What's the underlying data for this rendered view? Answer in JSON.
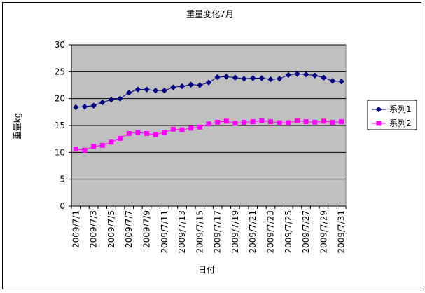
{
  "chart_data": {
    "type": "line",
    "title": "重量変化7月",
    "xlabel": "日付",
    "ylabel": "重量kg",
    "ylim": [
      0,
      30
    ],
    "yticks": [
      0,
      5,
      10,
      15,
      20,
      25,
      30
    ],
    "grid": "horizontal",
    "legend": "right",
    "plot_background": "#c0c0c0",
    "categories": [
      "2009/7/1",
      "2009/7/2",
      "2009/7/3",
      "2009/7/4",
      "2009/7/5",
      "2009/7/6",
      "2009/7/7",
      "2009/7/8",
      "2009/7/9",
      "2009/7/10",
      "2009/7/11",
      "2009/7/12",
      "2009/7/13",
      "2009/7/14",
      "2009/7/15",
      "2009/7/16",
      "2009/7/17",
      "2009/7/18",
      "2009/7/19",
      "2009/7/20",
      "2009/7/21",
      "2009/7/22",
      "2009/7/23",
      "2009/7/24",
      "2009/7/25",
      "2009/7/26",
      "2009/7/27",
      "2009/7/28",
      "2009/7/29",
      "2009/7/30",
      "2009/7/31"
    ],
    "shown_tick_labels": [
      "2009/7/1",
      "2009/7/3",
      "2009/7/5",
      "2009/7/7",
      "2009/7/9",
      "2009/7/11",
      "2009/7/13",
      "2009/7/15",
      "2009/7/17",
      "2009/7/19",
      "2009/7/21",
      "2009/7/23",
      "2009/7/25",
      "2009/7/27",
      "2009/7/29",
      "2009/7/31"
    ],
    "series": [
      {
        "name": "系列1",
        "color": "#000080",
        "marker": "diamond",
        "values": [
          18.4,
          18.5,
          18.7,
          19.3,
          19.8,
          20.0,
          21.1,
          21.7,
          21.7,
          21.5,
          21.5,
          22.1,
          22.3,
          22.6,
          22.5,
          23.0,
          24.0,
          24.1,
          23.9,
          23.7,
          23.8,
          23.8,
          23.6,
          23.7,
          24.4,
          24.6,
          24.5,
          24.3,
          23.9,
          23.3,
          23.2
        ]
      },
      {
        "name": "系列2",
        "color": "#ff00ff",
        "marker": "square",
        "values": [
          10.6,
          10.4,
          11.1,
          11.3,
          11.9,
          12.6,
          13.5,
          13.7,
          13.5,
          13.3,
          13.7,
          14.3,
          14.2,
          14.5,
          14.7,
          15.3,
          15.6,
          15.8,
          15.4,
          15.6,
          15.7,
          15.9,
          15.7,
          15.5,
          15.5,
          15.9,
          15.7,
          15.6,
          15.8,
          15.6,
          15.7
        ]
      }
    ]
  }
}
